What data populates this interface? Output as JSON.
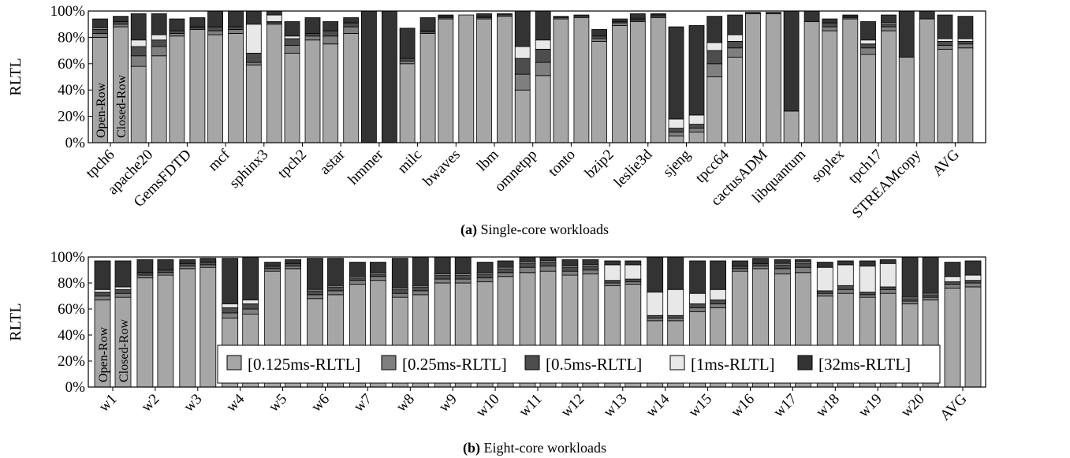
{
  "colors": {
    "le_0_125ms": "#a6a6a6",
    "le_0_25ms": "#7f7f7f",
    "le_0_5ms": "#4d4d4d",
    "le_1ms": "#e8e8e8",
    "le_32ms": "#333333",
    "bar_edge": "#000000"
  },
  "legend": [
    "[0.125ms-RLTL]",
    "[0.25ms-RLTL]",
    "[0.5ms-RLTL]",
    "[1ms-RLTL]",
    "[32ms-RLTL]"
  ],
  "chart_data": [
    {
      "type": "bar",
      "stacked": true,
      "caption_label": "(a)",
      "caption_text": "Single-core workloads",
      "ylabel": "RLTL",
      "ylim": [
        0,
        100
      ],
      "yticks": [
        "0%",
        "20%",
        "40%",
        "60%",
        "80%",
        "100%"
      ],
      "bar_labels": [
        "Open-Row",
        "Closed-Row"
      ],
      "categories": [
        "tpch6",
        "apache20",
        "GemsFDTD",
        "mcf",
        "sphinx3",
        "tpch2",
        "astar",
        "hmmer",
        "milc",
        "bwaves",
        "lbm",
        "omnetpp",
        "tonto",
        "bzip2",
        "leslie3d",
        "sjeng",
        "tpcc64",
        "cactusADM",
        "libquantum",
        "soplex",
        "tpch17",
        "STREAMcopy",
        "AVG"
      ],
      "series": [
        {
          "name": "[0.125ms-RLTL]",
          "open": [
            80,
            58,
            81,
            82,
            59,
            68,
            75,
            0,
            60,
            94,
            94,
            40,
            94,
            77,
            92,
            5,
            50,
            98,
            24,
            85,
            67,
            65,
            71
          ],
          "closed": [
            88,
            66,
            86,
            83,
            90,
            78,
            83,
            0,
            83,
            97,
            96,
            51,
            95,
            89,
            95,
            8,
            65,
            98,
            92,
            94,
            85,
            94,
            72
          ]
        },
        {
          "name": "[0.25ms-RLTL]",
          "open": [
            3,
            8,
            2,
            3,
            2,
            6,
            6,
            0,
            2,
            1,
            1,
            12,
            1,
            2,
            1,
            3,
            10,
            0,
            0,
            3,
            5,
            0,
            3
          ],
          "closed": [
            2,
            7,
            1,
            3,
            1,
            3,
            5,
            0,
            1,
            0,
            1,
            10,
            1,
            2,
            1,
            3,
            7,
            0,
            0,
            1,
            3,
            0,
            3
          ]
        },
        {
          "name": "[0.5ms-RLTL]",
          "open": [
            3,
            7,
            2,
            3,
            7,
            5,
            4,
            0,
            2,
            1,
            1,
            12,
            1,
            2,
            1,
            3,
            10,
            0,
            0,
            3,
            3,
            0,
            3
          ],
          "closed": [
            2,
            5,
            1,
            2,
            1,
            2,
            3,
            0,
            1,
            0,
            0,
            10,
            0,
            1,
            1,
            3,
            5,
            0,
            0,
            1,
            2,
            0,
            2
          ]
        },
        {
          "name": "[1ms-RLTL]",
          "open": [
            1,
            5,
            0,
            0,
            22,
            2,
            0,
            0,
            0,
            0,
            0,
            9,
            0,
            0,
            0,
            7,
            6,
            0,
            0,
            0,
            3,
            0,
            2
          ],
          "closed": [
            0,
            4,
            0,
            0,
            5,
            0,
            0,
            0,
            0,
            0,
            0,
            7,
            0,
            0,
            0,
            7,
            5,
            0,
            0,
            0,
            1,
            0,
            2
          ]
        },
        {
          "name": "[32ms-RLTL]",
          "open": [
            7,
            20,
            9,
            12,
            10,
            11,
            7,
            100,
            23,
            1,
            2,
            27,
            0,
            5,
            4,
            70,
            20,
            1,
            76,
            3,
            14,
            35,
            18
          ],
          "closed": [
            4,
            16,
            7,
            12,
            3,
            12,
            4,
            100,
            10,
            0,
            1,
            22,
            1,
            2,
            1,
            68,
            15,
            1,
            8,
            1,
            6,
            6,
            17
          ]
        }
      ]
    },
    {
      "type": "bar",
      "stacked": true,
      "caption_label": "(b)",
      "caption_text": "Eight-core workloads",
      "ylabel": "RLTL",
      "ylim": [
        0,
        100
      ],
      "yticks": [
        "0%",
        "20%",
        "40%",
        "60%",
        "80%",
        "100%"
      ],
      "bar_labels": [
        "Open-Row",
        "Closed-Row"
      ],
      "categories": [
        "w1",
        "w2",
        "w3",
        "w4",
        "w5",
        "w6",
        "w7",
        "w8",
        "w9",
        "w10",
        "w11",
        "w12",
        "w13",
        "w14",
        "w15",
        "w16",
        "w17",
        "w18",
        "w19",
        "w20",
        "AVG"
      ],
      "series": [
        {
          "name": "[0.125ms-RLTL]",
          "open": [
            67,
            84,
            91,
            53,
            89,
            68,
            79,
            69,
            80,
            81,
            88,
            86,
            78,
            51,
            58,
            89,
            87,
            70,
            69,
            64,
            76
          ],
          "closed": [
            69,
            86,
            92,
            56,
            91,
            71,
            82,
            71,
            80,
            85,
            89,
            87,
            79,
            51,
            61,
            91,
            88,
            72,
            72,
            67,
            77
          ]
        },
        {
          "name": "[0.25ms-RLTL]",
          "open": [
            3,
            2,
            2,
            4,
            2,
            3,
            3,
            3,
            3,
            3,
            4,
            3,
            2,
            2,
            3,
            2,
            4,
            2,
            2,
            2,
            3
          ],
          "closed": [
            3,
            2,
            2,
            4,
            2,
            3,
            3,
            3,
            3,
            3,
            4,
            3,
            2,
            2,
            3,
            2,
            4,
            3,
            3,
            2,
            3
          ]
        },
        {
          "name": "[0.5ms-RLTL]",
          "open": [
            3,
            2,
            2,
            4,
            2,
            3,
            2,
            3,
            3,
            3,
            3,
            3,
            2,
            2,
            3,
            2,
            3,
            2,
            2,
            2,
            2
          ],
          "closed": [
            3,
            2,
            2,
            4,
            2,
            3,
            2,
            3,
            3,
            3,
            3,
            3,
            2,
            2,
            3,
            2,
            3,
            3,
            2,
            2,
            2
          ]
        },
        {
          "name": "[1ms-RLTL]",
          "open": [
            2,
            0,
            0,
            3,
            0,
            1,
            1,
            1,
            1,
            1,
            1,
            1,
            12,
            18,
            8,
            0,
            1,
            18,
            20,
            1,
            4
          ],
          "closed": [
            2,
            0,
            0,
            3,
            0,
            1,
            1,
            1,
            1,
            1,
            1,
            1,
            11,
            20,
            8,
            0,
            1,
            16,
            18,
            1,
            4
          ]
        },
        {
          "name": "[32ms-RLTL]",
          "open": [
            22,
            10,
            3,
            35,
            3,
            24,
            11,
            23,
            13,
            8,
            4,
            5,
            3,
            27,
            25,
            4,
            3,
            4,
            4,
            31,
            11
          ],
          "closed": [
            20,
            8,
            3,
            33,
            3,
            21,
            8,
            22,
            13,
            5,
            3,
            4,
            3,
            25,
            22,
            4,
            2,
            3,
            3,
            28,
            11
          ]
        }
      ]
    }
  ]
}
